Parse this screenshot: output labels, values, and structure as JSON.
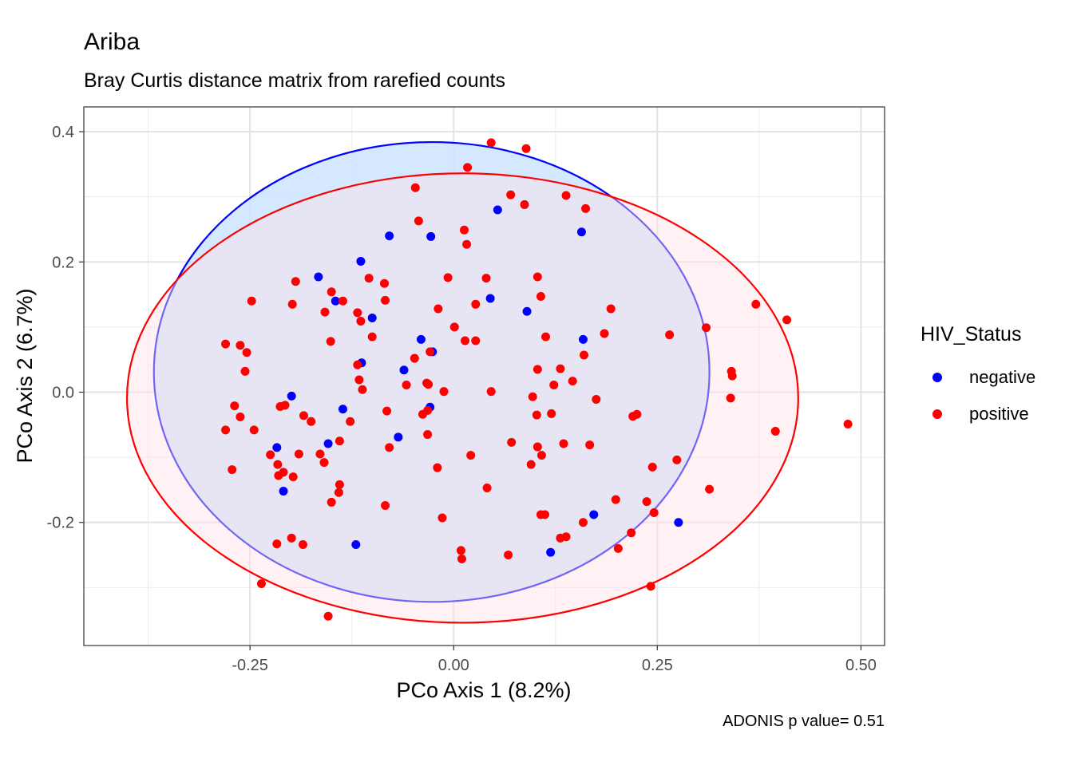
{
  "chart_data": {
    "type": "scatter",
    "title": "Ariba",
    "subtitle": "Bray Curtis distance matrix from rarefied counts",
    "xlabel": "PCo Axis 1 (8.2%)",
    "ylabel": "PCo Axis 2 (6.7%)",
    "caption": "ADONIS p value= 0.51",
    "xlim": [
      -0.454,
      0.529
    ],
    "ylim": [
      -0.389,
      0.438
    ],
    "x_ticks": [
      -0.25,
      0.0,
      0.25,
      0.5
    ],
    "x_tick_labels": [
      "-0.25",
      "0.00",
      "0.25",
      "0.50"
    ],
    "y_ticks": [
      -0.2,
      0.0,
      0.2,
      0.4
    ],
    "y_tick_labels": [
      "-0.2",
      "0.0",
      "0.2",
      "0.4"
    ],
    "grid": true,
    "legend": {
      "title": "HIV_Status",
      "position": "right"
    },
    "colors": {
      "negative": "#0000ff",
      "positive": "#ff0000"
    },
    "ellipses": [
      {
        "group": "negative",
        "cx": -0.027,
        "cy": 0.031,
        "rx": 0.341,
        "ry": 0.353,
        "fill": "#cce5ff",
        "fill_opacity": 0.85,
        "stroke": "#0000ff"
      },
      {
        "group": "positive",
        "cx": 0.011,
        "cy": -0.009,
        "rx": 0.412,
        "ry": 0.345,
        "fill": "#ffe0e6",
        "fill_opacity": 0.45,
        "stroke": "#ff0000"
      }
    ],
    "series": [
      {
        "name": "negative",
        "color": "#0000ff",
        "points": [
          [
            0.054,
            0.28
          ],
          [
            0.157,
            0.246
          ],
          [
            -0.079,
            0.24
          ],
          [
            -0.028,
            0.239
          ],
          [
            -0.114,
            0.201
          ],
          [
            -0.166,
            0.177
          ],
          [
            -0.145,
            0.14
          ],
          [
            0.045,
            0.144
          ],
          [
            0.09,
            0.124
          ],
          [
            -0.1,
            0.114
          ],
          [
            -0.04,
            0.081
          ],
          [
            0.159,
            0.081
          ],
          [
            -0.026,
            0.062
          ],
          [
            -0.113,
            0.045
          ],
          [
            -0.061,
            0.034
          ],
          [
            -0.199,
            -0.006
          ],
          [
            -0.136,
            -0.026
          ],
          [
            -0.029,
            -0.023
          ],
          [
            -0.217,
            -0.085
          ],
          [
            -0.154,
            -0.079
          ],
          [
            -0.068,
            -0.069
          ],
          [
            -0.209,
            -0.152
          ],
          [
            0.172,
            -0.188
          ],
          [
            0.276,
            -0.2
          ],
          [
            -0.12,
            -0.234
          ],
          [
            0.119,
            -0.246
          ]
        ]
      },
      {
        "name": "positive",
        "color": "#ff0000",
        "points": [
          [
            0.046,
            0.383
          ],
          [
            0.089,
            0.374
          ],
          [
            0.017,
            0.345
          ],
          [
            -0.047,
            0.314
          ],
          [
            0.07,
            0.303
          ],
          [
            0.138,
            0.302
          ],
          [
            0.087,
            0.288
          ],
          [
            0.162,
            0.282
          ],
          [
            -0.043,
            0.263
          ],
          [
            0.013,
            0.249
          ],
          [
            0.016,
            0.227
          ],
          [
            -0.194,
            0.17
          ],
          [
            -0.104,
            0.175
          ],
          [
            -0.085,
            0.167
          ],
          [
            -0.007,
            0.176
          ],
          [
            0.04,
            0.175
          ],
          [
            0.103,
            0.177
          ],
          [
            -0.15,
            0.154
          ],
          [
            -0.136,
            0.14
          ],
          [
            -0.198,
            0.135
          ],
          [
            -0.248,
            0.14
          ],
          [
            -0.084,
            0.141
          ],
          [
            0.027,
            0.135
          ],
          [
            0.107,
            0.147
          ],
          [
            -0.158,
            0.123
          ],
          [
            -0.118,
            0.122
          ],
          [
            -0.019,
            0.128
          ],
          [
            0.193,
            0.128
          ],
          [
            -0.114,
            0.109
          ],
          [
            0.371,
            0.135
          ],
          [
            0.409,
            0.111
          ],
          [
            0.31,
            0.099
          ],
          [
            0.001,
            0.1
          ],
          [
            0.185,
            0.09
          ],
          [
            0.265,
            0.088
          ],
          [
            -0.1,
            0.085
          ],
          [
            0.113,
            0.085
          ],
          [
            -0.151,
            0.078
          ],
          [
            0.014,
            0.079
          ],
          [
            0.027,
            0.079
          ],
          [
            -0.28,
            0.074
          ],
          [
            -0.262,
            0.072
          ],
          [
            -0.254,
            0.061
          ],
          [
            -0.029,
            0.062
          ],
          [
            -0.048,
            0.052
          ],
          [
            0.16,
            0.057
          ],
          [
            -0.118,
            0.042
          ],
          [
            -0.256,
            0.032
          ],
          [
            0.103,
            0.035
          ],
          [
            0.131,
            0.036
          ],
          [
            0.341,
            0.032
          ],
          [
            0.342,
            0.025
          ],
          [
            -0.116,
            0.019
          ],
          [
            0.146,
            0.017
          ],
          [
            -0.033,
            0.014
          ],
          [
            -0.058,
            0.011
          ],
          [
            0.123,
            0.011
          ],
          [
            -0.031,
            0.012
          ],
          [
            -0.112,
            0.004
          ],
          [
            -0.012,
            0.001
          ],
          [
            0.046,
            0.001
          ],
          [
            0.097,
            -0.007
          ],
          [
            0.175,
            -0.011
          ],
          [
            0.34,
            -0.009
          ],
          [
            -0.269,
            -0.021
          ],
          [
            -0.213,
            -0.022
          ],
          [
            -0.207,
            -0.02
          ],
          [
            -0.082,
            -0.029
          ],
          [
            -0.032,
            -0.028
          ],
          [
            -0.262,
            -0.038
          ],
          [
            -0.184,
            -0.036
          ],
          [
            -0.127,
            -0.045
          ],
          [
            -0.175,
            -0.045
          ],
          [
            -0.038,
            -0.034
          ],
          [
            0.102,
            -0.035
          ],
          [
            0.12,
            -0.033
          ],
          [
            0.225,
            -0.034
          ],
          [
            0.22,
            -0.037
          ],
          [
            -0.28,
            -0.058
          ],
          [
            -0.245,
            -0.058
          ],
          [
            -0.14,
            -0.075
          ],
          [
            -0.032,
            -0.065
          ],
          [
            0.071,
            -0.077
          ],
          [
            0.103,
            -0.084
          ],
          [
            0.135,
            -0.079
          ],
          [
            0.167,
            -0.081
          ],
          [
            0.395,
            -0.06
          ],
          [
            0.484,
            -0.049
          ],
          [
            -0.079,
            -0.085
          ],
          [
            -0.225,
            -0.096
          ],
          [
            -0.19,
            -0.095
          ],
          [
            -0.164,
            -0.095
          ],
          [
            0.021,
            -0.097
          ],
          [
            0.108,
            -0.097
          ],
          [
            0.274,
            -0.104
          ],
          [
            -0.216,
            -0.111
          ],
          [
            -0.159,
            -0.108
          ],
          [
            -0.272,
            -0.119
          ],
          [
            0.244,
            -0.115
          ],
          [
            -0.209,
            -0.123
          ],
          [
            -0.215,
            -0.128
          ],
          [
            -0.197,
            -0.13
          ],
          [
            -0.02,
            -0.116
          ],
          [
            0.095,
            -0.111
          ],
          [
            -0.14,
            -0.142
          ],
          [
            -0.141,
            -0.154
          ],
          [
            0.314,
            -0.149
          ],
          [
            0.041,
            -0.147
          ],
          [
            -0.15,
            -0.169
          ],
          [
            -0.084,
            -0.174
          ],
          [
            0.199,
            -0.165
          ],
          [
            0.237,
            -0.168
          ],
          [
            0.246,
            -0.185
          ],
          [
            0.107,
            -0.188
          ],
          [
            0.112,
            -0.188
          ],
          [
            -0.014,
            -0.193
          ],
          [
            0.159,
            -0.2
          ],
          [
            0.218,
            -0.216
          ],
          [
            -0.199,
            -0.224
          ],
          [
            0.131,
            -0.224
          ],
          [
            0.138,
            -0.222
          ],
          [
            -0.217,
            -0.233
          ],
          [
            -0.185,
            -0.234
          ],
          [
            0.202,
            -0.24
          ],
          [
            0.009,
            -0.243
          ],
          [
            0.01,
            -0.256
          ],
          [
            0.067,
            -0.25
          ],
          [
            -0.236,
            -0.294
          ],
          [
            0.242,
            -0.298
          ],
          [
            -0.154,
            -0.344
          ]
        ]
      }
    ]
  }
}
